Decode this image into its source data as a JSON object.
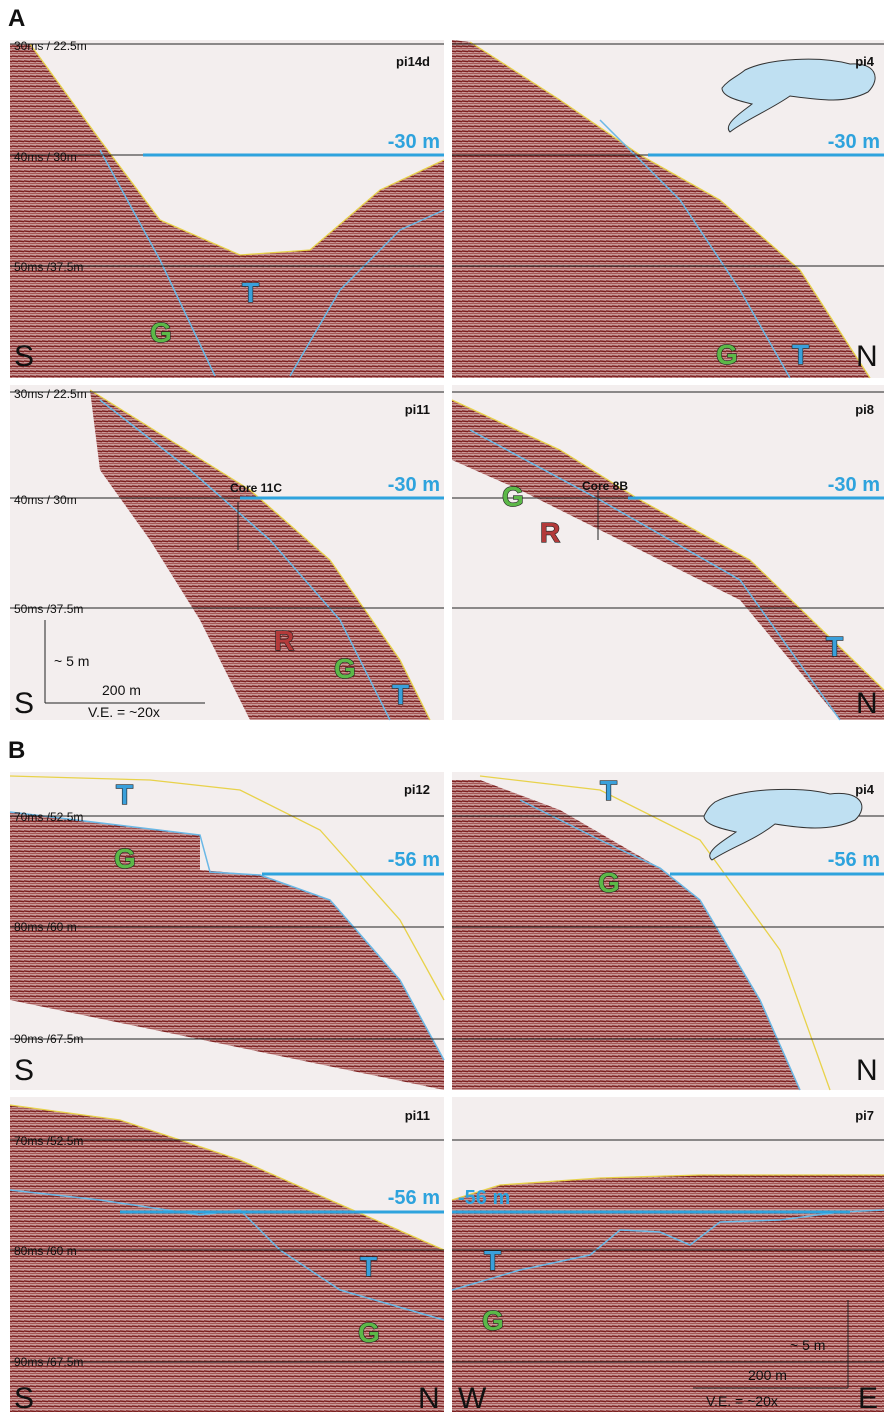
{
  "section_a": {
    "label": "A",
    "panels": [
      {
        "profile": "pi14d",
        "depth_labels": [
          "30ms / 22.5m",
          "40ms / 30m",
          "50ms /37.5m"
        ],
        "water_level": "-30 m",
        "directions": [
          "S"
        ],
        "units": [
          "T",
          "G"
        ]
      },
      {
        "profile": "pi4",
        "water_level": "-30 m",
        "directions": [
          "N"
        ],
        "units": [
          "G",
          "T"
        ]
      },
      {
        "profile": "pi11",
        "depth_labels": [
          "30ms / 22.5m",
          "40ms / 30m",
          "50ms /37.5m"
        ],
        "water_level": "-30 m",
        "core": "Core 11C",
        "directions": [
          "S"
        ],
        "units": [
          "R",
          "G",
          "T"
        ],
        "scale": {
          "vertical": "~ 5 m",
          "horizontal": "200 m",
          "exaggeration": "V.E. = ~20x"
        }
      },
      {
        "profile": "pi8",
        "water_level": "-30 m",
        "core": "Core 8B",
        "directions": [
          "N"
        ],
        "units": [
          "G",
          "R",
          "T"
        ]
      }
    ]
  },
  "section_b": {
    "label": "B",
    "panels": [
      {
        "profile": "pi12",
        "depth_labels": [
          "70ms /52.5m",
          "80ms /60 m",
          "90ms /67.5m"
        ],
        "water_level": "-56 m",
        "directions": [
          "S"
        ],
        "units": [
          "T",
          "G"
        ]
      },
      {
        "profile": "pi4",
        "water_level": "-56 m",
        "directions": [
          "N"
        ],
        "units": [
          "T",
          "G"
        ]
      },
      {
        "profile": "pi11",
        "depth_labels": [
          "70ms /52.5m",
          "80ms /60 m",
          "90ms /67.5m"
        ],
        "water_level": "-56 m",
        "directions": [
          "S",
          "N"
        ],
        "units": [
          "T",
          "G"
        ]
      },
      {
        "profile": "pi7",
        "water_level": "-56 m",
        "directions": [
          "W",
          "E"
        ],
        "units": [
          "T",
          "G"
        ],
        "scale": {
          "vertical": "~ 5 m",
          "horizontal": "200 m",
          "exaggeration": "V.E. = ~20x"
        }
      }
    ]
  }
}
